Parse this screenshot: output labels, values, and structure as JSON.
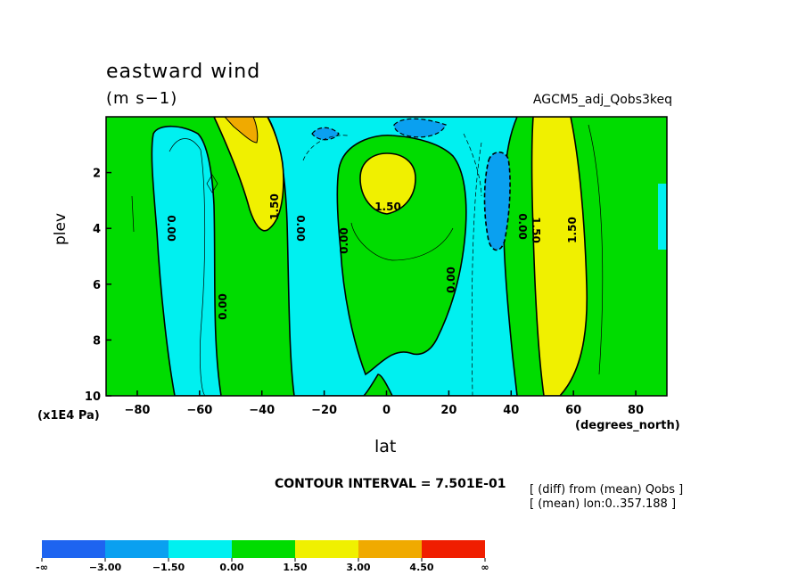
{
  "chart_data": {
    "type": "contour",
    "title": "eastward wind",
    "units_label": "(m s−1)",
    "dataset": "AGCM5_adj_Qobs3keq",
    "ylabel": "plev",
    "yunits": "(x1E4 Pa)",
    "xlabel": "lat",
    "xunits": "(degrees_north)",
    "xlim": [
      -90,
      90
    ],
    "ylim": [
      10,
      0
    ],
    "x_ticks": [
      -80,
      -60,
      -40,
      -20,
      0,
      20,
      40,
      60,
      80
    ],
    "x_tick_labels": [
      "−80",
      "−60",
      "−40",
      "−20",
      "0",
      "20",
      "40",
      "60",
      "80"
    ],
    "y_ticks": [
      2,
      4,
      6,
      8,
      10
    ],
    "y_tick_labels": [
      "2",
      "4",
      "6",
      "8",
      "10"
    ],
    "contour_interval_text": "CONTOUR INTERVAL = 7.501E-01",
    "notes": [
      "[ (diff) from (mean) Qobs ]",
      "[ (mean) lon:0..357.188 ]"
    ],
    "contour_labels": [
      "1.50",
      "0.00",
      "0.00",
      "0.00",
      "1.50",
      "0.00",
      "0.00",
      "0.00",
      "1.50",
      "1.50"
    ],
    "colorbar": {
      "colors": [
        "#1e64f0",
        "#0aa0f0",
        "#00f0f0",
        "#00dc00",
        "#f0f000",
        "#f0aa00",
        "#f01e00"
      ],
      "labels": [
        "-∞",
        "−3.00",
        "−1.50",
        "0.00",
        "1.50",
        "3.00",
        "4.50",
        "∞"
      ]
    }
  }
}
